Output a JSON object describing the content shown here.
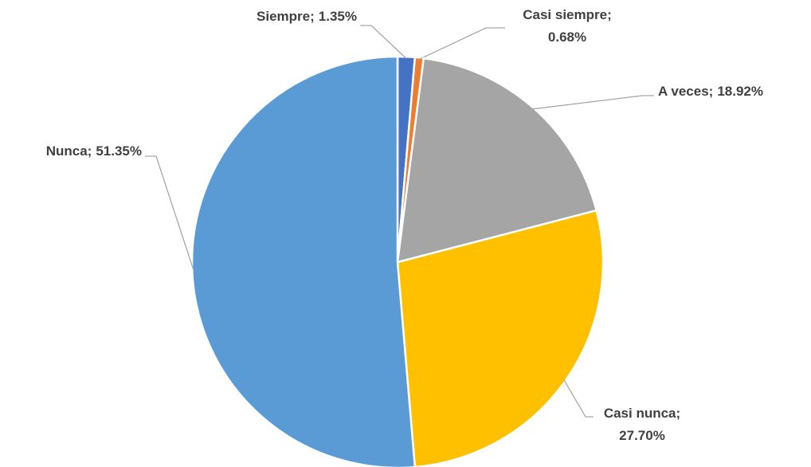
{
  "chart_data": {
    "type": "pie",
    "categories": [
      "Siempre",
      "Casi siempre",
      "A veces",
      "Casi nunca",
      "Nunca"
    ],
    "values": [
      1.35,
      0.68,
      18.92,
      27.7,
      51.35
    ],
    "value_labels": [
      "1.35%",
      "0.68%",
      "18.92%",
      "27.70%",
      "51.35%"
    ],
    "label_separator": ";",
    "colors": [
      "#4472c4",
      "#ed7d31",
      "#a5a5a5",
      "#ffc000",
      "#5b9bd5"
    ]
  }
}
